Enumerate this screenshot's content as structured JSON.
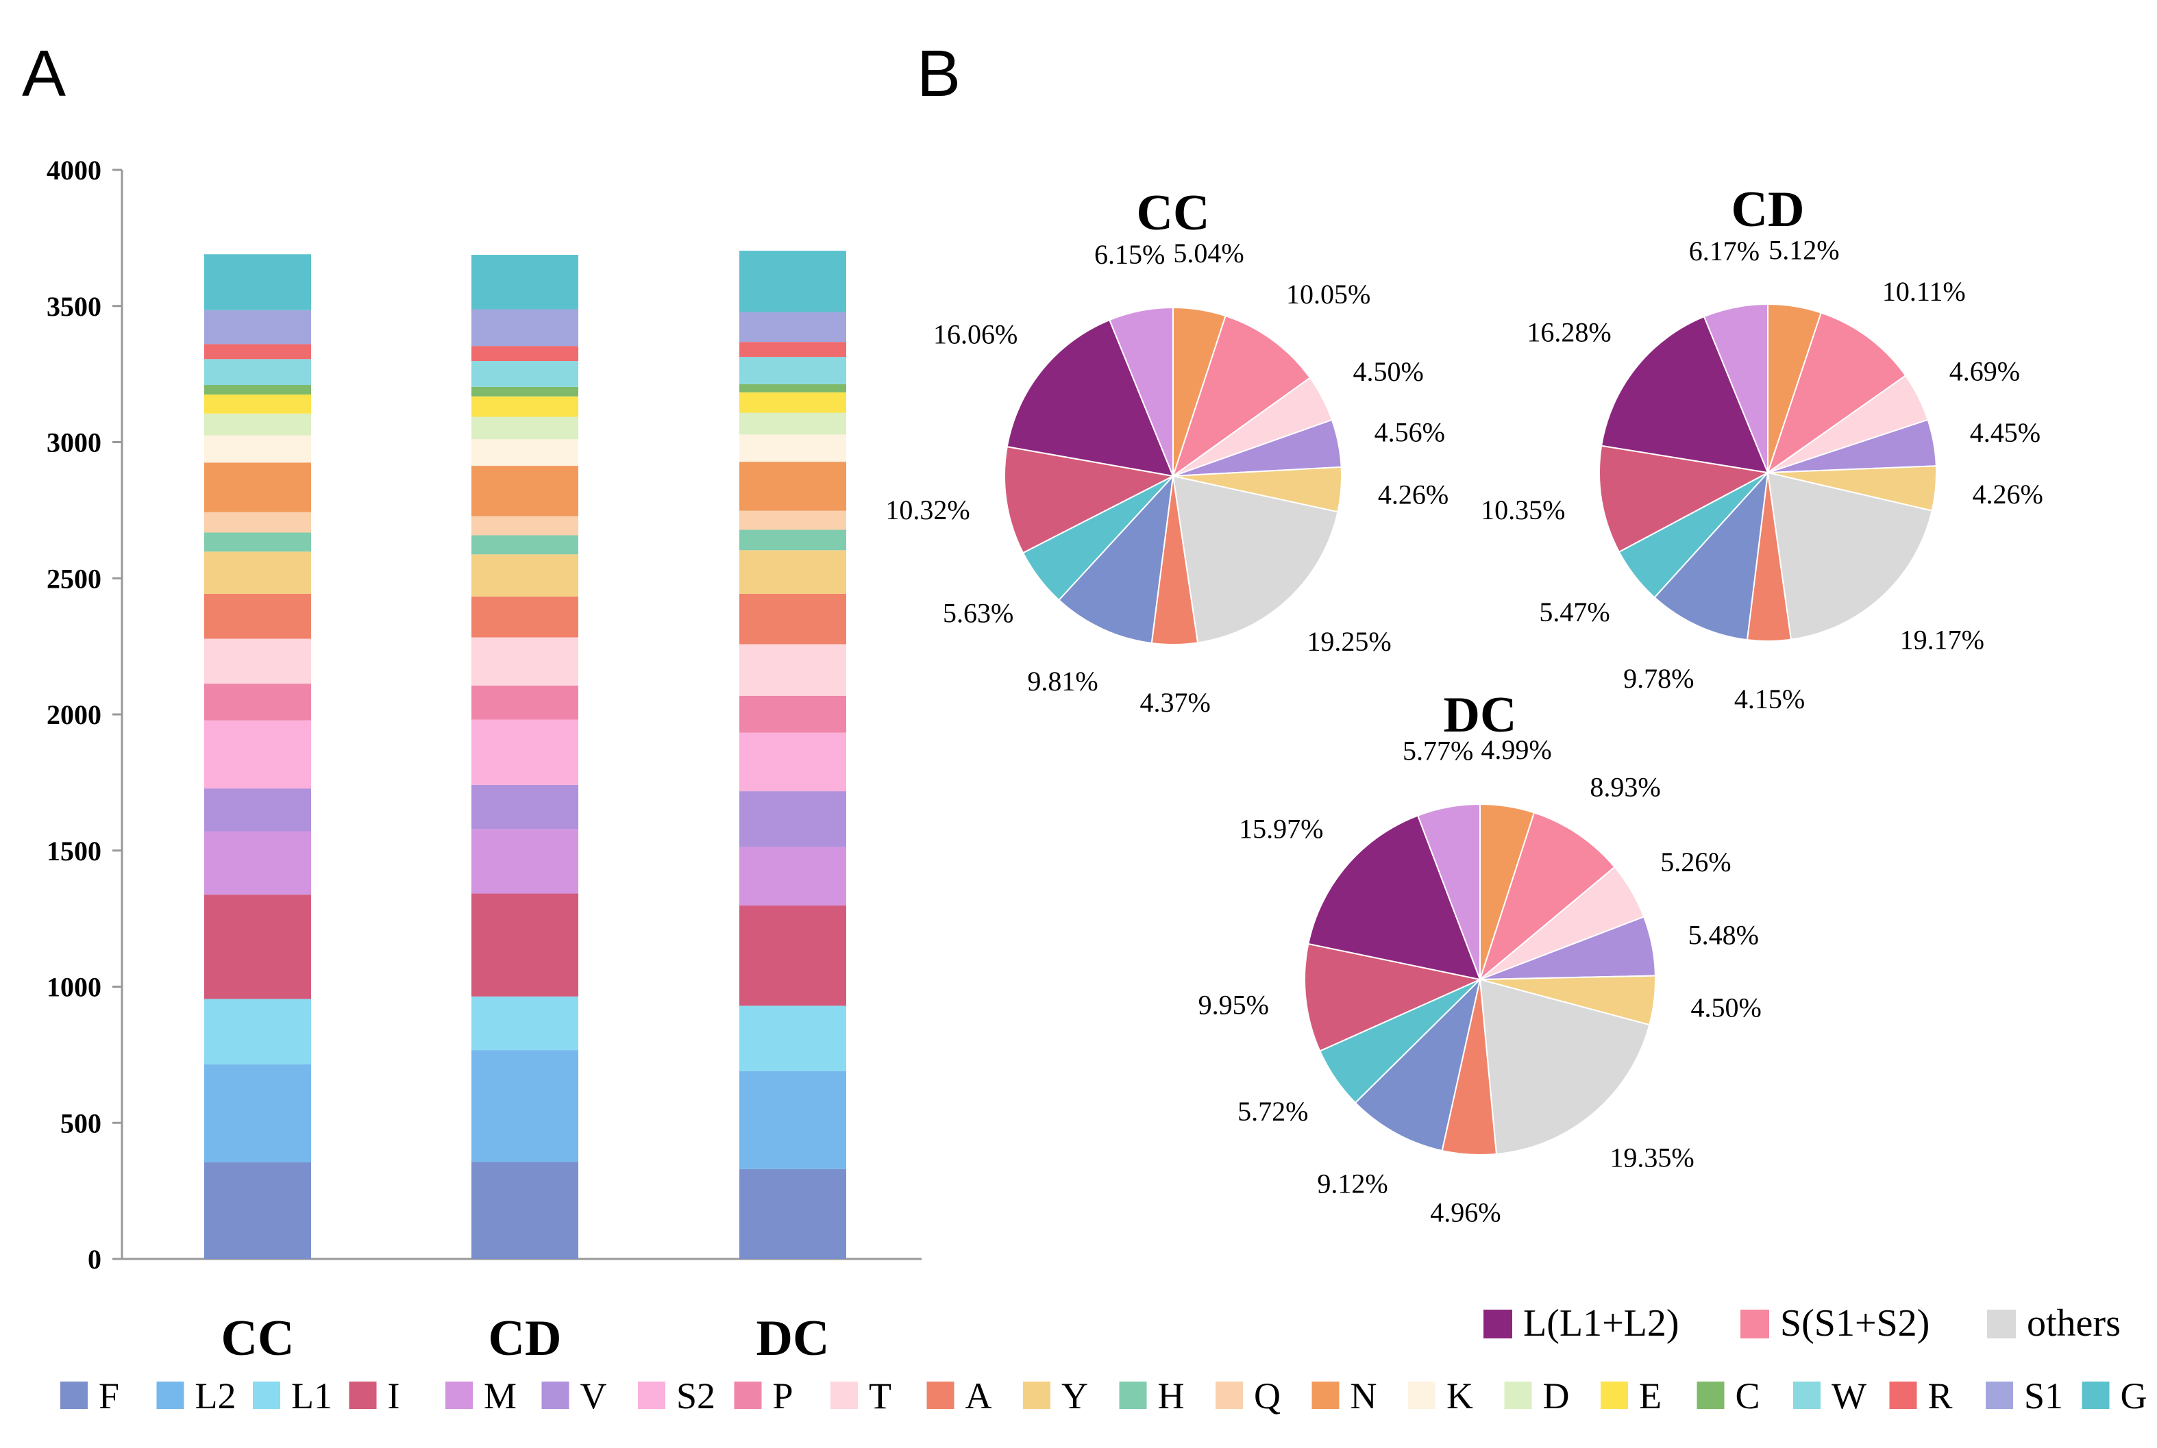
{
  "panels": {
    "a": "A",
    "b": "B"
  },
  "chart_data": [
    {
      "type": "bar",
      "stacked": true,
      "panel": "A",
      "categories": [
        "CC",
        "CD",
        "DC"
      ],
      "ylim": [
        0,
        4000
      ],
      "yticks": [
        "0",
        "500",
        "1000",
        "1500",
        "2000",
        "2500",
        "3000",
        "3500",
        "4000"
      ],
      "yticks_values": [
        0,
        500,
        1000,
        1500,
        2000,
        2500,
        3000,
        3500,
        4000
      ],
      "series": [
        {
          "name": "F",
          "color": "#7b8fcd",
          "values": [
            355,
            356,
            330
          ]
        },
        {
          "name": "L2",
          "color": "#76b8ec",
          "values": [
            360,
            411,
            360
          ]
        },
        {
          "name": "L1",
          "color": "#8adbf1",
          "values": [
            240,
            197,
            240
          ]
        },
        {
          "name": "I",
          "color": "#d35a7a",
          "values": [
            383,
            378,
            368
          ]
        },
        {
          "name": "M",
          "color": "#d395df",
          "values": [
            233,
            237,
            215
          ]
        },
        {
          "name": "V",
          "color": "#af91dc",
          "values": [
            157,
            162,
            205
          ]
        },
        {
          "name": "S2",
          "color": "#fcb0dc",
          "values": [
            250,
            240,
            215
          ]
        },
        {
          "name": "P",
          "color": "#ef86aa",
          "values": [
            135,
            125,
            135
          ]
        },
        {
          "name": "T",
          "color": "#fdd6de",
          "values": [
            165,
            177,
            190
          ]
        },
        {
          "name": "A",
          "color": "#f0826a",
          "values": [
            165,
            150,
            185
          ]
        },
        {
          "name": "Y",
          "color": "#f4d084",
          "values": [
            155,
            155,
            160
          ]
        },
        {
          "name": "H",
          "color": "#7fccae",
          "values": [
            70,
            70,
            75
          ]
        },
        {
          "name": "Q",
          "color": "#fad1ac",
          "values": [
            75,
            70,
            70
          ]
        },
        {
          "name": "N",
          "color": "#f19a5c",
          "values": [
            182,
            185,
            180
          ]
        },
        {
          "name": "K",
          "color": "#fef2e0",
          "values": [
            100,
            98,
            100
          ]
        },
        {
          "name": "D",
          "color": "#dcefc2",
          "values": [
            80,
            82,
            80
          ]
        },
        {
          "name": "E",
          "color": "#fde34b",
          "values": [
            70,
            75,
            75
          ]
        },
        {
          "name": "C",
          "color": "#7fb96a",
          "values": [
            35,
            35,
            30
          ]
        },
        {
          "name": "W",
          "color": "#8ad9e0",
          "values": [
            95,
            95,
            100
          ]
        },
        {
          "name": "R",
          "color": "#ef6b6d",
          "values": [
            55,
            55,
            55
          ]
        },
        {
          "name": "S1",
          "color": "#a2a6dd",
          "values": [
            125,
            135,
            110
          ]
        },
        {
          "name": "G",
          "color": "#5bc2cd",
          "values": [
            205,
            200,
            225
          ]
        }
      ]
    },
    {
      "type": "pie",
      "panel": "B",
      "title": "CC",
      "slices": [
        {
          "name": "N",
          "color": "#f19a5c",
          "value": 5.04,
          "label": "5.04%"
        },
        {
          "name": "S",
          "color": "#f7879f",
          "value": 10.05,
          "label": "10.05%"
        },
        {
          "name": "T",
          "color": "#fdd6de",
          "value": 4.5,
          "label": "4.50%"
        },
        {
          "name": "V",
          "color": "#ab8fdb",
          "value": 4.56,
          "label": "4.56%"
        },
        {
          "name": "Y",
          "color": "#f4d084",
          "value": 4.26,
          "label": "4.26%"
        },
        {
          "name": "others",
          "color": "#d9d9d9",
          "value": 19.25,
          "label": "19.25%"
        },
        {
          "name": "A",
          "color": "#f0826a",
          "value": 4.37,
          "label": "4.37%"
        },
        {
          "name": "F",
          "color": "#7b8fcd",
          "value": 9.81,
          "label": "9.81%"
        },
        {
          "name": "G",
          "color": "#5bc2cd",
          "value": 5.63,
          "label": "5.63%"
        },
        {
          "name": "I",
          "color": "#d35a7a",
          "value": 10.32,
          "label": "10.32%"
        },
        {
          "name": "L",
          "color": "#8b267e",
          "value": 16.06,
          "label": "16.06%"
        },
        {
          "name": "M",
          "color": "#d395df",
          "value": 6.15,
          "label": "6.15%"
        }
      ]
    },
    {
      "type": "pie",
      "panel": "B",
      "title": "CD",
      "slices": [
        {
          "name": "N",
          "color": "#f19a5c",
          "value": 5.12,
          "label": "5.12%"
        },
        {
          "name": "S",
          "color": "#f7879f",
          "value": 10.11,
          "label": "10.11%"
        },
        {
          "name": "T",
          "color": "#fdd6de",
          "value": 4.69,
          "label": "4.69%"
        },
        {
          "name": "V",
          "color": "#ab8fdb",
          "value": 4.45,
          "label": "4.45%"
        },
        {
          "name": "Y",
          "color": "#f4d084",
          "value": 4.26,
          "label": "4.26%"
        },
        {
          "name": "others",
          "color": "#d9d9d9",
          "value": 19.17,
          "label": "19.17%"
        },
        {
          "name": "A",
          "color": "#f0826a",
          "value": 4.15,
          "label": "4.15%"
        },
        {
          "name": "F",
          "color": "#7b8fcd",
          "value": 9.78,
          "label": "9.78%"
        },
        {
          "name": "G",
          "color": "#5bc2cd",
          "value": 5.47,
          "label": "5.47%"
        },
        {
          "name": "I",
          "color": "#d35a7a",
          "value": 10.35,
          "label": "10.35%"
        },
        {
          "name": "L",
          "color": "#8b267e",
          "value": 16.28,
          "label": "16.28%"
        },
        {
          "name": "M",
          "color": "#d395df",
          "value": 6.17,
          "label": "6.17%"
        }
      ]
    },
    {
      "type": "pie",
      "panel": "B",
      "title": "DC",
      "slices": [
        {
          "name": "N",
          "color": "#f19a5c",
          "value": 4.99,
          "label": "4.99%"
        },
        {
          "name": "S",
          "color": "#f7879f",
          "value": 8.93,
          "label": "8.93%"
        },
        {
          "name": "T",
          "color": "#fdd6de",
          "value": 5.26,
          "label": "5.26%"
        },
        {
          "name": "V",
          "color": "#ab8fdb",
          "value": 5.48,
          "label": "5.48%"
        },
        {
          "name": "Y",
          "color": "#f4d084",
          "value": 4.5,
          "label": "4.50%"
        },
        {
          "name": "others",
          "color": "#d9d9d9",
          "value": 19.35,
          "label": "19.35%"
        },
        {
          "name": "A",
          "color": "#f0826a",
          "value": 4.96,
          "label": "4.96%"
        },
        {
          "name": "F",
          "color": "#7b8fcd",
          "value": 9.12,
          "label": "9.12%"
        },
        {
          "name": "G",
          "color": "#5bc2cd",
          "value": 5.72,
          "label": "5.72%"
        },
        {
          "name": "I",
          "color": "#d35a7a",
          "value": 9.95,
          "label": "9.95%"
        },
        {
          "name": "L",
          "color": "#8b267e",
          "value": 15.97,
          "label": "15.97%"
        },
        {
          "name": "M",
          "color": "#d395df",
          "value": 5.77,
          "label": "5.77%"
        }
      ]
    }
  ],
  "pie_legend": [
    {
      "label": "L(L1+L2)",
      "color": "#8b267e"
    },
    {
      "label": "S(S1+S2)",
      "color": "#f7879f"
    },
    {
      "label": "others",
      "color": "#d9d9d9"
    }
  ]
}
